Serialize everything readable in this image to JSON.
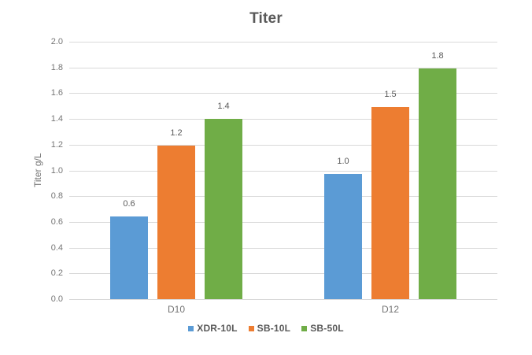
{
  "chart_data": {
    "type": "bar",
    "title": "Titer",
    "ylabel": "Titer g/L",
    "xlabel": "",
    "categories": [
      "D10",
      "D12"
    ],
    "series": [
      {
        "name": "XDR-10L",
        "color": "#5b9bd5",
        "values": [
          0.6,
          1.0
        ],
        "values_precise": [
          0.64,
          0.97
        ],
        "data_labels": [
          "0.6",
          "1.0"
        ]
      },
      {
        "name": "SB-10L",
        "color": "#ed7d31",
        "values": [
          1.2,
          1.5
        ],
        "values_precise": [
          1.19,
          1.49
        ],
        "data_labels": [
          "1.2",
          "1.5"
        ]
      },
      {
        "name": "SB-50L",
        "color": "#70ad47",
        "values": [
          1.4,
          1.8
        ],
        "values_precise": [
          1.4,
          1.79
        ],
        "data_labels": [
          "1.4",
          "1.8"
        ]
      }
    ],
    "ylim": [
      0,
      2
    ],
    "ytick_step": 0.2,
    "ytick_labels": [
      "0.0",
      "0.2",
      "0.4",
      "0.6",
      "0.8",
      "1.0",
      "1.2",
      "1.4",
      "1.6",
      "1.8",
      "2.0"
    ],
    "grid": "horizontal",
    "legend_position": "bottom",
    "colors": {
      "background": "#ffffff",
      "gridline": "#d9d9d9",
      "tick_text": "#757575",
      "axis_title_text": "#757575",
      "data_label_text": "#595959",
      "title_text": "#595959",
      "legend_text": "#595959"
    }
  }
}
